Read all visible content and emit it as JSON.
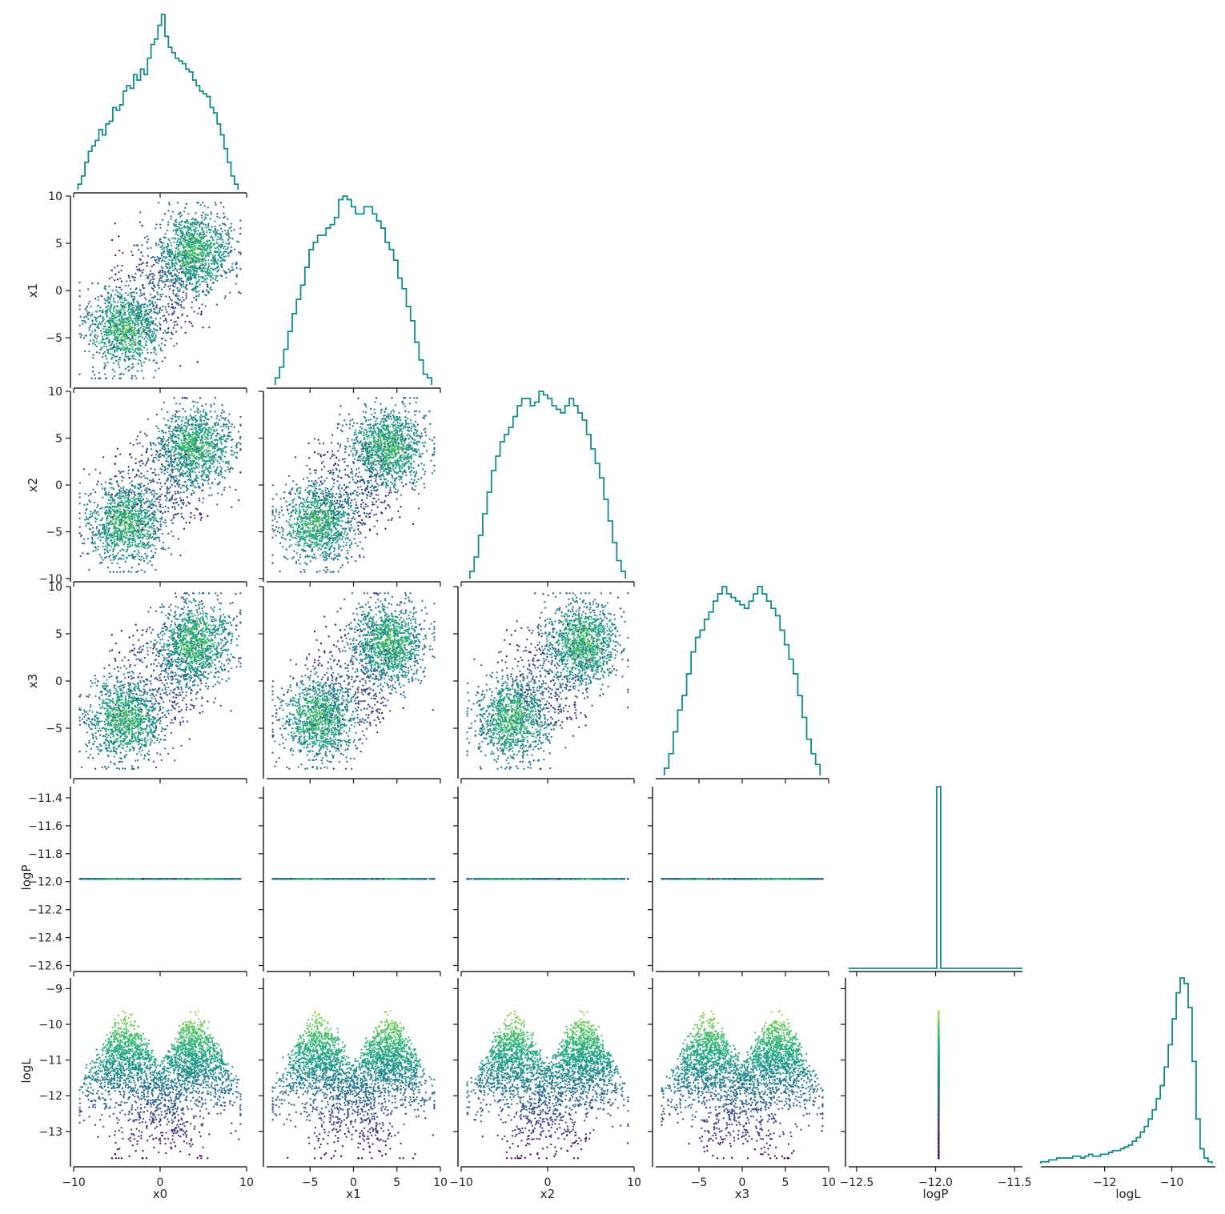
{
  "chart_data": {
    "type": "corner",
    "variables": [
      "x0",
      "x1",
      "x2",
      "x3",
      "logP",
      "logL"
    ],
    "axis_labels": [
      "x0",
      "x1",
      "x2",
      "x3",
      "logP",
      "logL"
    ],
    "ranges": {
      "x0": [
        -10,
        10
      ],
      "x1": [
        -10,
        10
      ],
      "x2": [
        -10,
        10
      ],
      "x3": [
        -10,
        10
      ],
      "logP": [
        -12.62,
        -11.32
      ],
      "logL": [
        -13.9,
        -8.7
      ],
      "logP_hist_x": [
        -12.55,
        -11.45
      ],
      "logL_hist_x": [
        -13.9,
        -8.7
      ]
    },
    "ticks": {
      "x0": [
        -10,
        0,
        10
      ],
      "x1": [
        -5,
        0,
        5,
        10
      ],
      "x2": [
        -10,
        0,
        10
      ],
      "x3": [
        -5,
        0,
        5,
        10
      ],
      "logP_y": [
        -11.4,
        -11.6,
        -11.8,
        -12.0,
        -12.2,
        -12.4,
        -12.6
      ],
      "logP_x": [
        -12.5,
        -12.0,
        -11.5
      ],
      "logL_y": [
        -9,
        -10,
        -11,
        -12,
        -13
      ],
      "logL_x": [
        -12,
        -10
      ],
      "x1_y": [
        10,
        5,
        0,
        -5
      ],
      "x2_y": [
        10,
        5,
        0,
        -5,
        -10
      ],
      "x3_y": [
        10,
        5,
        0,
        -5
      ]
    },
    "tick_labels": {
      "x0": [
        "−10",
        "0",
        "10"
      ],
      "x1": [
        "−5",
        "0",
        "5",
        "10"
      ],
      "x2": [
        "−10",
        "0",
        "10"
      ],
      "x3": [
        "−5",
        "0",
        "5",
        "10"
      ],
      "logP_y": [
        "−11.4",
        "−11.6",
        "−11.8",
        "−12.0",
        "−12.2",
        "−12.4",
        "−12.6"
      ],
      "logP_x": [
        "−12.5",
        "−12.0",
        "−11.5"
      ],
      "logL_y": [
        "−9",
        "−10",
        "−11",
        "−12",
        "−13"
      ],
      "logL_x": [
        "−12",
        "−10"
      ],
      "x1_y": [
        "10",
        "5",
        "0",
        "−5"
      ],
      "x2_y": [
        "10",
        "5",
        "0",
        "−5",
        "−10"
      ],
      "x3_y": [
        "10",
        "5",
        "0",
        "−5"
      ]
    },
    "logP_value": -11.98,
    "histograms": {
      "x0": {
        "range": [
          -9.5,
          9
        ],
        "counts": [
          2,
          5,
          10,
          14,
          16,
          18,
          22,
          20,
          24,
          25,
          30,
          29,
          31,
          36,
          38,
          37,
          42,
          40,
          44,
          42,
          48,
          53,
          55,
          60,
          64,
          56,
          52,
          50,
          48,
          47,
          46,
          44,
          43,
          40,
          38,
          36,
          35,
          34,
          30,
          28,
          24,
          20,
          15,
          10,
          5,
          2
        ]
      },
      "x1": {
        "range": [
          -9,
          9
        ],
        "counts": [
          2,
          5,
          10,
          15,
          20,
          24,
          28,
          33,
          38,
          40,
          42,
          42,
          44,
          45,
          47,
          52,
          53,
          52,
          50,
          48,
          48,
          50,
          50,
          48,
          46,
          44,
          40,
          38,
          35,
          30,
          27,
          22,
          18,
          12,
          7,
          3,
          2
        ]
      },
      "x2": {
        "range": [
          -9,
          9
        ],
        "counts": [
          2,
          6,
          12,
          18,
          24,
          30,
          34,
          38,
          40,
          42,
          45,
          48,
          50,
          50,
          48,
          49,
          52,
          51,
          50,
          48,
          47,
          46,
          48,
          50,
          48,
          46,
          44,
          40,
          36,
          32,
          28,
          22,
          16,
          10,
          5,
          2
        ]
      },
      "x3": {
        "range": [
          -9,
          9
        ],
        "counts": [
          2,
          6,
          12,
          18,
          22,
          28,
          34,
          38,
          40,
          43,
          45,
          48,
          50,
          52,
          50,
          49,
          48,
          47,
          46,
          48,
          50,
          52,
          50,
          48,
          46,
          44,
          40,
          36,
          32,
          28,
          22,
          16,
          10,
          6,
          3
        ]
      },
      "logL": {
        "range": [
          -13.9,
          -8.8
        ],
        "counts": [
          1,
          1,
          2,
          2,
          3,
          3,
          3,
          3,
          4,
          4,
          3,
          4,
          5,
          4,
          4,
          5,
          5,
          6,
          7,
          7,
          8,
          9,
          10,
          12,
          14,
          17,
          20,
          24,
          29,
          35,
          42,
          52,
          64,
          78,
          92,
          100,
          97,
          84,
          55,
          24,
          8,
          3,
          1
        ]
      },
      "logP": {
        "value": -11.98,
        "count": 100
      }
    },
    "colormap": "viridis",
    "hist_color": "#138b8b",
    "style": {
      "grid": false
    }
  }
}
